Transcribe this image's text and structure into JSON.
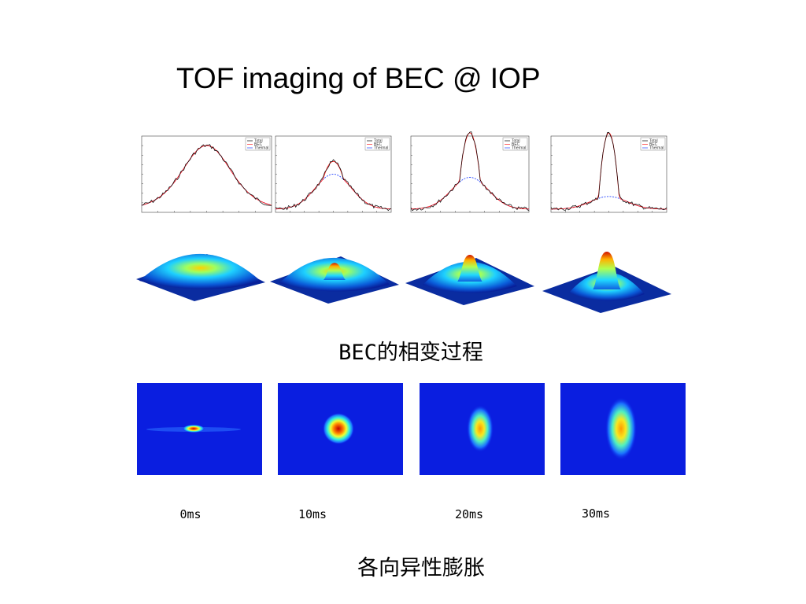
{
  "title": "TOF imaging of BEC @ IOP",
  "plot_legend": [
    "Total",
    "BEC",
    "Thermal"
  ],
  "caption_transition": "BEC的相变过程",
  "time_labels": [
    "0ms",
    "10ms",
    "20ms",
    "30ms"
  ],
  "caption_expansion": "各向异性膨胀"
}
